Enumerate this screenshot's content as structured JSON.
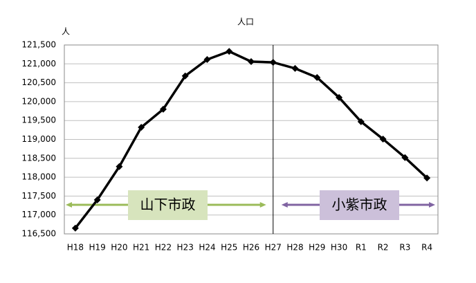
{
  "chart_data": {
    "type": "line",
    "title": "人口",
    "y_label": "人",
    "categories": [
      "H18",
      "H19",
      "H20",
      "H21",
      "H22",
      "H23",
      "H24",
      "H25",
      "H26",
      "H27",
      "H28",
      "H29",
      "H30",
      "R1",
      "R2",
      "R3",
      "R4"
    ],
    "series": [
      {
        "name": "人口",
        "color": "#000000",
        "values": [
          116650,
          117400,
          118280,
          119320,
          119800,
          120680,
          121115,
          121330,
          121060,
          121040,
          120880,
          120640,
          120110,
          119470,
          119010,
          118520,
          117980
        ]
      }
    ],
    "ylim": [
      116500,
      121500
    ],
    "yticks": [
      {
        "value": 116500,
        "label": "116,500"
      },
      {
        "value": 117000,
        "label": "117,000"
      },
      {
        "value": 117500,
        "label": "117,500"
      },
      {
        "value": 118000,
        "label": "118,000"
      },
      {
        "value": 118500,
        "label": "118,500"
      },
      {
        "value": 119000,
        "label": "119,000"
      },
      {
        "value": 119500,
        "label": "119,500"
      },
      {
        "value": 120000,
        "label": "120,000"
      },
      {
        "value": 120500,
        "label": "120,500"
      },
      {
        "value": 121000,
        "label": "121,000"
      },
      {
        "value": 121500,
        "label": "121,500"
      }
    ],
    "grid": true,
    "annotations": [
      {
        "text": "山下市政",
        "color": "#9bbb59",
        "fill": "#d7e4bd"
      },
      {
        "text": "小紫市政",
        "color": "#8064a2",
        "fill": "#ccc0da"
      }
    ]
  }
}
